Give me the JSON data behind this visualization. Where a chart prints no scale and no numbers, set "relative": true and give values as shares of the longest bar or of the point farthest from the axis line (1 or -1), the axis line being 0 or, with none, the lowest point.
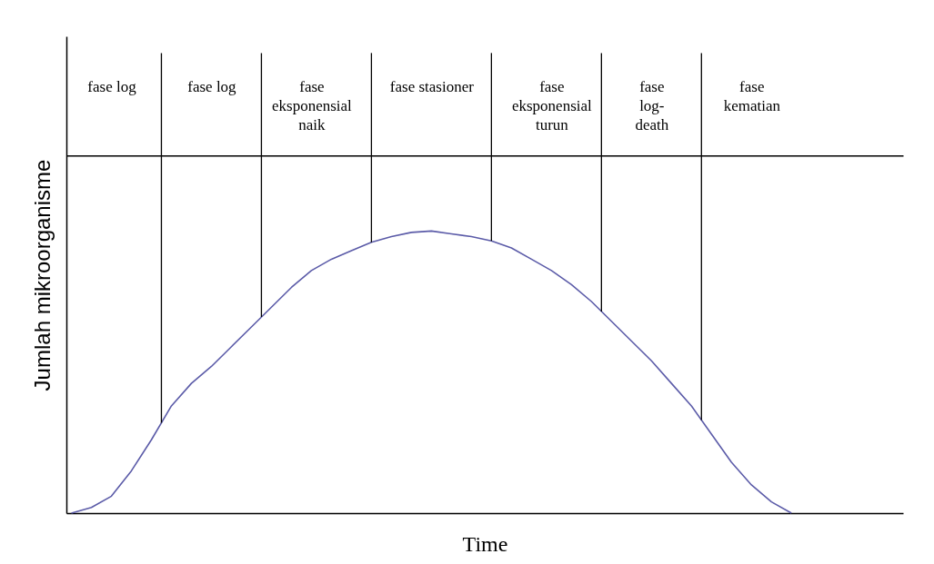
{
  "chart_data": {
    "type": "line",
    "relative": true,
    "xlabel": "Time",
    "ylabel": "Jumlah mikroorganisme",
    "categories": [
      null,
      null,
      "fase log",
      null,
      null,
      null,
      null,
      "fase log",
      null,
      null,
      null,
      null,
      "fase\neksponensial\nnaik",
      null,
      null,
      null,
      null,
      null,
      "fase stasioner",
      null,
      null,
      null,
      null,
      null,
      "fase\neksponensial\nturun",
      null,
      null,
      null,
      null,
      "fase\nlog-\ndeath",
      null,
      null,
      null,
      null,
      "fase\nkematian",
      null,
      null
    ],
    "series": [
      {
        "color": "#5b5ba8",
        "values": [
          0,
          0.02,
          0.06,
          0.15,
          0.26,
          0.38,
          0.46,
          0.52,
          0.59,
          0.66,
          0.73,
          0.8,
          0.86,
          0.9,
          0.93,
          0.96,
          0.98,
          0.995,
          1,
          0.99,
          0.98,
          0.965,
          0.94,
          0.9,
          0.86,
          0.81,
          0.75,
          0.68,
          0.61,
          0.54,
          0.46,
          0.38,
          0.28,
          0.18,
          0.1,
          0.04,
          0
        ]
      }
    ],
    "tick_labels": "x",
    "line_style": "solid"
  }
}
